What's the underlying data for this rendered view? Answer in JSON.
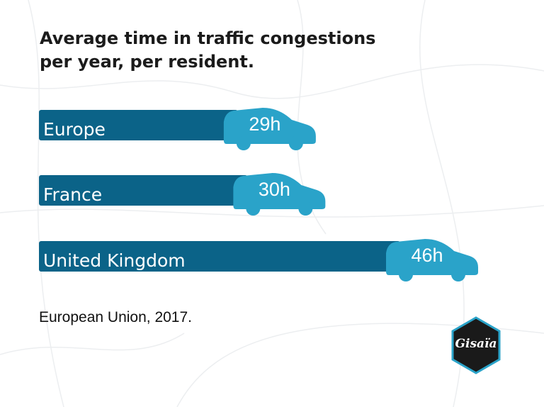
{
  "chart_data": {
    "type": "bar",
    "orientation": "horizontal",
    "title": "Average time in traffic congestions per year, per resident.",
    "categories": [
      "Europe",
      "France",
      "United Kingdom"
    ],
    "values": [
      29,
      30,
      46
    ],
    "value_labels": [
      "29h",
      "30h",
      "46h"
    ],
    "color": "#0b6388",
    "mark_color": "#2aa3c9",
    "note": "European Union, 2017."
  },
  "logo": "Gisaïa"
}
